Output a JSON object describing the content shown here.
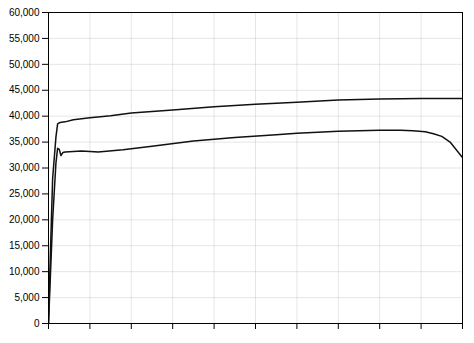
{
  "chart_data": {
    "type": "line",
    "xlim": [
      0,
      1.0
    ],
    "xticks": [
      0,
      0.1,
      0.2,
      0.3,
      0.4,
      0.5,
      0.6,
      0.7,
      0.8,
      0.9,
      1.0
    ],
    "ylim": [
      0,
      60000
    ],
    "yticks": [
      0,
      {
        "value": 5000,
        "label": "5,000"
      },
      {
        "value": 10000,
        "label": "10,000"
      },
      {
        "value": 15000,
        "label": "15,000"
      },
      {
        "value": 20000,
        "label": "20,000"
      },
      {
        "value": 25000,
        "label": "25,000"
      },
      {
        "value": 30000,
        "label": "30,000"
      },
      {
        "value": 35000,
        "label": "35,000"
      },
      {
        "value": 40000,
        "label": "40,000"
      },
      {
        "value": 45000,
        "label": "45,000"
      },
      {
        "value": 50000,
        "label": "50,000"
      },
      {
        "value": 55000,
        "label": "55,000"
      },
      {
        "value": 60000,
        "label": "60,000"
      }
    ],
    "grid": true,
    "tick_labels": "y",
    "series": [
      {
        "color": "#111111",
        "x": [
          0,
          0.004,
          0.01,
          0.018,
          0.022,
          0.028,
          0.04,
          0.06,
          0.1,
          0.15,
          0.2,
          0.3,
          0.4,
          0.5,
          0.6,
          0.7,
          0.8,
          0.9,
          1.0
        ],
        "values": [
          0,
          12000,
          28000,
          36000,
          38500,
          38800,
          38900,
          39300,
          39700,
          40100,
          40600,
          41200,
          41800,
          42300,
          42700,
          43100,
          43300,
          43400,
          43400
        ]
      },
      {
        "color": "#111111",
        "x": [
          0,
          0.004,
          0.01,
          0.018,
          0.022,
          0.026,
          0.03,
          0.035,
          0.04,
          0.06,
          0.08,
          0.12,
          0.18,
          0.25,
          0.35,
          0.45,
          0.55,
          0.6,
          0.65,
          0.7,
          0.75,
          0.8,
          0.85,
          0.88,
          0.91,
          0.93,
          0.95,
          0.97,
          1.0
        ],
        "values": [
          0,
          8000,
          20000,
          31000,
          33800,
          33600,
          32400,
          33000,
          33100,
          33200,
          33300,
          33100,
          33500,
          34200,
          35200,
          35900,
          36400,
          36700,
          36900,
          37100,
          37200,
          37300,
          37300,
          37200,
          37000,
          36600,
          36100,
          35000,
          32000
        ]
      }
    ]
  }
}
